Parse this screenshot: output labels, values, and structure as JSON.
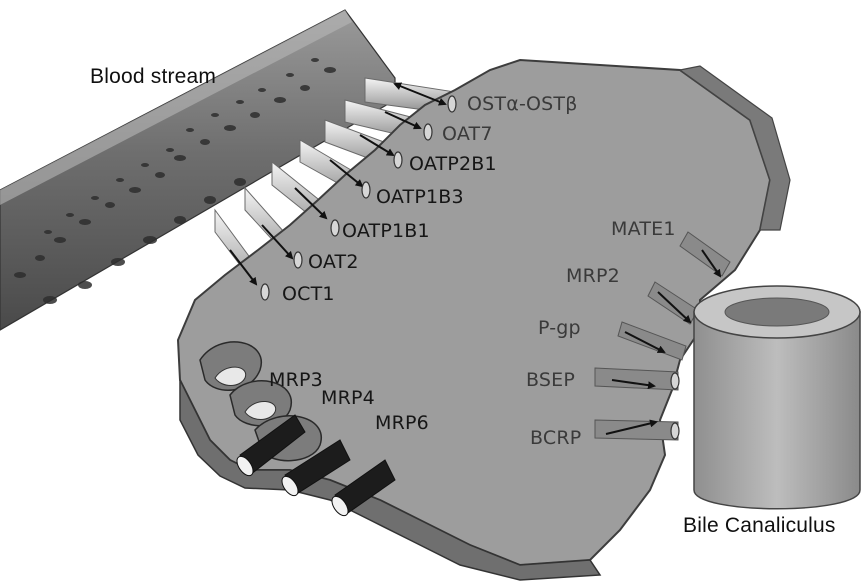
{
  "labels": {
    "blood_stream": "Blood stream",
    "bile_canaliculus": "Bile Canaliculus"
  },
  "basolateral_uptake": [
    "OSTα-OSTβ",
    "OAT7",
    "OATP2B1",
    "OATP1B3",
    "OATP1B1",
    "OAT2",
    "OCT1"
  ],
  "basolateral_efflux": [
    "MRP3",
    "MRP4",
    "MRP6"
  ],
  "canalicular_efflux": [
    "MATE1",
    "MRP2",
    "P-gp",
    "BSEP",
    "BCRP"
  ],
  "colors": {
    "hepatocyte_fill": "#9d9d9d",
    "hepatocyte_edge": "#5a5a5a",
    "vessel": "#777777",
    "canaliculus": "#a8a8a8",
    "arrow": "#111111"
  }
}
